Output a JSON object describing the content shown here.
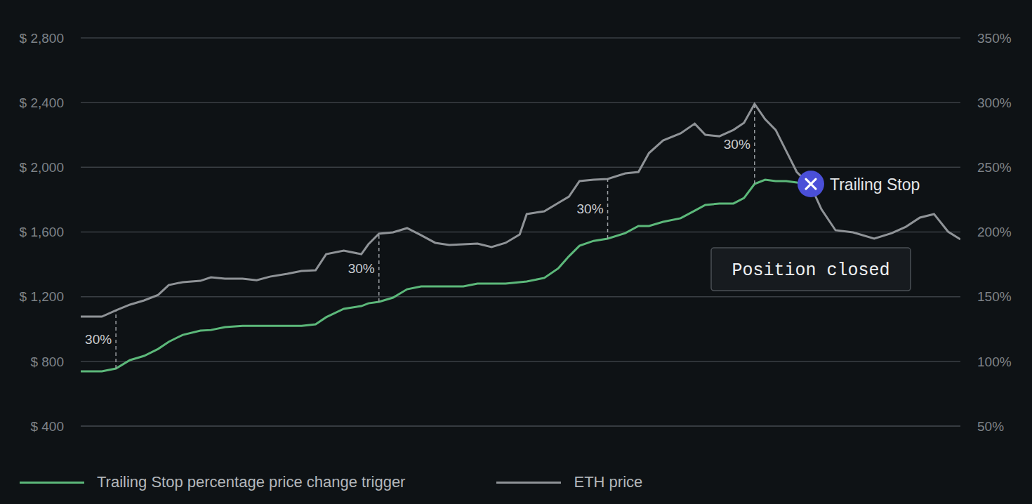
{
  "chart_data": {
    "type": "line",
    "x": [
      0,
      2.4,
      4.0,
      5.6,
      7.2,
      8.8,
      10.0,
      11.6,
      13.6,
      14.8,
      16.4,
      18.4,
      20.0,
      21.5,
      23.5,
      25.1,
      26.7,
      27.9,
      29.9,
      31.9,
      32.7,
      33.9,
      35.5,
      37.1,
      38.7,
      40.3,
      41.9,
      43.5,
      45.1,
      46.7,
      48.3,
      49.9,
      50.7,
      52.7,
      54.3,
      55.5,
      56.7,
      58.3,
      59.9,
      61.9,
      63.4,
      64.6,
      66.2,
      68.2,
      69.8,
      71.0,
      72.6,
      74.2,
      75.4,
      76.6,
      77.8,
      79.0,
      80.2,
      81.4,
      83.0,
      84.2,
      85.8,
      87.8,
      90.2,
      92.2,
      93.8,
      95.4,
      97.0,
      98.6,
      100
    ],
    "xlim": [
      0,
      100
    ],
    "series": [
      {
        "name": "Trailing Stop percentage price change trigger",
        "color": "#5cb87a",
        "values": [
          739,
          739,
          756,
          808,
          834,
          877,
          921,
          964,
          990,
          994,
          1012,
          1020,
          1020,
          1020,
          1020,
          1020,
          1029,
          1073,
          1125,
          1142,
          1159,
          1168,
          1194,
          1246,
          1264,
          1264,
          1264,
          1264,
          1281,
          1281,
          1281,
          1290,
          1294,
          1316,
          1376,
          1450,
          1515,
          1545,
          1559,
          1593,
          1637,
          1637,
          1663,
          1685,
          1732,
          1767,
          1776,
          1776,
          1810,
          1897,
          1923,
          1915,
          1915,
          1906,
          1897,
          null,
          null,
          null,
          null,
          null,
          null,
          null,
          null,
          null,
          null
        ]
      },
      {
        "name": "ETH price",
        "color": "#8f9397",
        "values": [
          1077,
          1077,
          1116,
          1151,
          1177,
          1211,
          1272,
          1290,
          1298,
          1320,
          1311,
          1311,
          1302,
          1324,
          1342,
          1359,
          1363,
          1463,
          1485,
          1463,
          1524,
          1589,
          1598,
          1624,
          1580,
          1533,
          1520,
          1524,
          1528,
          1507,
          1533,
          1585,
          1711,
          1728,
          1780,
          1819,
          1915,
          1923,
          1928,
          1962,
          1971,
          2088,
          2166,
          2210,
          2270,
          2201,
          2192,
          2231,
          2275,
          2392,
          2297,
          2231,
          2101,
          1971,
          1884,
          1741,
          1611,
          1598,
          1559,
          1593,
          1632,
          1689,
          1711,
          1602,
          1554
        ]
      }
    ],
    "ylim": [
      400,
      2800
    ],
    "yticks": [
      {
        "value": 400,
        "label": "$ 400"
      },
      {
        "value": 800,
        "label": "$ 800"
      },
      {
        "value": 1200,
        "label": "$ 1,200"
      },
      {
        "value": 1600,
        "label": "$ 1,600"
      },
      {
        "value": 2000,
        "label": "$ 2,000"
      },
      {
        "value": 2400,
        "label": "$ 2,400"
      },
      {
        "value": 2800,
        "label": "$ 2,800"
      }
    ],
    "y2lim": [
      50,
      350
    ],
    "y2ticks": [
      {
        "value": 50,
        "label": "50%"
      },
      {
        "value": 100,
        "label": "100%"
      },
      {
        "value": 150,
        "label": "150%"
      },
      {
        "value": 200,
        "label": "200%"
      },
      {
        "value": 250,
        "label": "250%"
      },
      {
        "value": 300,
        "label": "300%"
      },
      {
        "value": 350,
        "label": "350%"
      }
    ],
    "grid": true,
    "legend": "bottom",
    "tick_labels": "y",
    "annotations": [
      {
        "text": "30%",
        "x": 4.0,
        "line_style": "dashed"
      },
      {
        "text": "30%",
        "x": 33.9,
        "line_style": "dashed"
      },
      {
        "text": "30%",
        "x": 59.9,
        "line_style": "dashed"
      },
      {
        "text": "30%",
        "x": 76.6,
        "line_style": "dashed"
      },
      {
        "text": "Trailing Stop",
        "x": 83.0,
        "y": 1897,
        "marker": "x"
      },
      {
        "text": "Position closed",
        "x": 83.0,
        "y": 1372,
        "marker": "box"
      }
    ]
  }
}
